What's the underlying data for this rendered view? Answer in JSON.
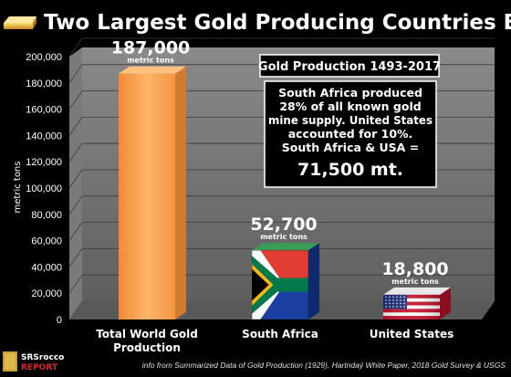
{
  "title": "Two Largest Gold Producing Countries Ever",
  "box_title": "Gold Production 1493-2017",
  "info_lines": [
    "South Africa produced",
    "28% of all known gold",
    "mine supply. United States",
    "accounted for 10%.",
    "South Africa & USA ="
  ],
  "info_total": "71,500 mt.",
  "source": "info from Summarized Data of Gold Production (1929), Hartndaý White Paper, 2018 Gold Survey & USGS",
  "logo": {
    "part1": "SRSrocco",
    "part2": "REPORT"
  },
  "chart_data": {
    "type": "bar",
    "categories": [
      [
        "Total World Gold",
        "Production"
      ],
      [
        "South Africa"
      ],
      [
        "United States"
      ]
    ],
    "values": [
      187000,
      52700,
      18800
    ],
    "value_labels": [
      "187,000",
      "52,700",
      "18,800"
    ],
    "unit_label": "metric tons",
    "ylabel": "metric tons",
    "ylim": [
      0,
      200000
    ],
    "yticks": [
      0,
      20000,
      40000,
      60000,
      80000,
      100000,
      120000,
      140000,
      160000,
      180000,
      200000
    ],
    "ytick_labels": [
      "0",
      "20,000",
      "40,000",
      "60,000",
      "80,000",
      "100,000",
      "120,000",
      "140,000",
      "160,000",
      "180,000",
      "200,000"
    ],
    "grid": true,
    "bar_fills": [
      "orange",
      "flag-south-africa",
      "flag-united-states"
    ],
    "colors": {
      "bar": "#f7a14c",
      "bar_side": "#d27a2e",
      "bar_top": "#ffc27f",
      "wall": "#6e6e6e",
      "floor": "#5a5a5a"
    }
  }
}
